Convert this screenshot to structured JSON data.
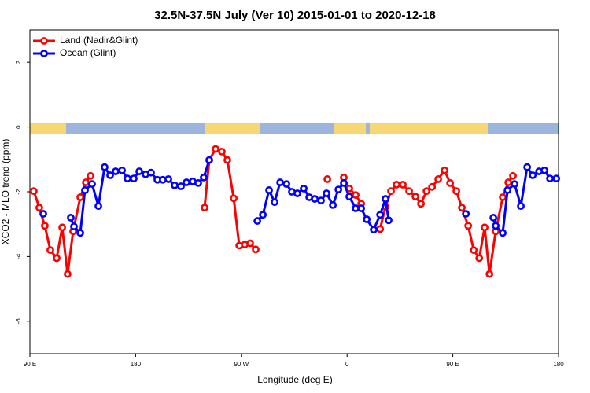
{
  "chart_data": {
    "type": "line",
    "title": "32.5N-37.5N July (Ver 10)   2015-01-01 to 2020-12-18",
    "xlabel": "Longitude (deg E)",
    "ylabel": "XCO2 - MLO trend (ppm)",
    "xlim": [
      90,
      540
    ],
    "ylim": [
      -7,
      3
    ],
    "xticks": [
      {
        "value": 90,
        "label": "90 E"
      },
      180,
      {
        "value": 270,
        "label": "90 W"
      },
      {
        "value": 360,
        "label": "0"
      },
      {
        "value": 450,
        "label": "90 E"
      },
      {
        "value": 540,
        "label": "180"
      }
    ],
    "yticks": [
      2,
      0,
      -2,
      -4,
      -6
    ],
    "legend": "topleft",
    "series": [
      {
        "name": "Land (Nadir&Glint)",
        "color": "#ff0000",
        "x": [
          93.3,
          98.0,
          102.7,
          107.4,
          112.8,
          117.5,
          122.1,
          126.8,
          132.9,
          137.6,
          141.6,
          null,
          238.7,
          242.7,
          248.1,
          253.4,
          258.1,
          263.5,
          268.2,
          272.9,
          277.5,
          282.2,
          null,
          343.2,
          null,
          357.2,
          361.9,
          367.3,
          372.0,
          null,
          388.1,
          392.7,
          397.4,
          402.1,
          407.5,
          412.8,
          418.2,
          422.9,
          427.6,
          432.3,
          437.6,
          443.0,
          447.7,
          453.0,
          457.7,
          463.1,
          467.8,
          472.5,
          477.1,
          481.2,
          486.5,
          492.5,
          497.2,
          501.2
        ],
        "values": [
          -1.98,
          -2.49,
          -3.05,
          -3.8,
          -4.05,
          -3.1,
          -4.54,
          -3.22,
          -2.17,
          -1.71,
          -1.51,
          null,
          -2.49,
          -1.02,
          -0.68,
          -0.76,
          -1.02,
          -2.2,
          -3.66,
          -3.63,
          -3.59,
          -3.78,
          null,
          -1.61,
          null,
          -1.56,
          -1.9,
          -2.1,
          -2.37,
          null,
          -3.15,
          -2.46,
          -1.98,
          -1.78,
          -1.78,
          -1.98,
          -2.15,
          -2.37,
          -1.98,
          -1.85,
          -1.61,
          -1.34,
          -1.73,
          -1.98,
          -2.49,
          -3.05,
          -3.8,
          -4.05,
          -3.1,
          -4.54,
          -3.22,
          -2.17,
          -1.71,
          -1.51
        ]
      },
      {
        "name": "Ocean (Glint)",
        "color": "#0000ff",
        "x": [
          101.4,
          null,
          124.8,
          127.5,
          132.9,
          136.9,
          142.9,
          148.3,
          153.6,
          158.3,
          163.0,
          168.4,
          173.1,
          178.4,
          183.1,
          188.5,
          193.1,
          198.5,
          203.2,
          207.9,
          213.2,
          218.6,
          223.3,
          228.6,
          233.3,
          238.0,
          242.7,
          null,
          283.6,
          288.3,
          293.6,
          298.3,
          303.0,
          308.4,
          313.0,
          317.7,
          323.1,
          327.8,
          332.5,
          337.8,
          342.5,
          347.9,
          352.6,
          357.2,
          361.9,
          367.3,
          372.0,
          376.7,
          382.7,
          388.1,
          392.7,
          395.4,
          null,
          461.1,
          null,
          484.5,
          486.5,
          492.5,
          496.6,
          502.6,
          507.9,
          513.3,
          518.0,
          523.4,
          528.0,
          532.7,
          538.1
        ],
        "values": [
          -2.68,
          null,
          -2.8,
          -3.07,
          -3.27,
          -1.95,
          -1.76,
          -2.44,
          -1.24,
          -1.49,
          -1.37,
          -1.34,
          -1.59,
          -1.59,
          -1.37,
          -1.46,
          -1.41,
          -1.63,
          -1.63,
          -1.61,
          -1.8,
          -1.83,
          -1.71,
          -1.68,
          -1.73,
          -1.56,
          -1.02,
          null,
          -2.9,
          -2.71,
          -1.95,
          -2.32,
          -1.71,
          -1.76,
          -2.0,
          -2.05,
          -1.9,
          -2.17,
          -2.22,
          -2.27,
          -2.05,
          -2.41,
          -1.93,
          -1.73,
          -2.15,
          -2.51,
          -2.51,
          -2.85,
          -3.17,
          -2.71,
          -2.22,
          -2.88,
          null,
          -2.68,
          null,
          -2.8,
          -3.05,
          -3.27,
          -1.95,
          -1.76,
          -2.44,
          -1.24,
          -1.49,
          -1.37,
          -1.34,
          -1.59,
          -1.59
        ]
      }
    ]
  }
}
